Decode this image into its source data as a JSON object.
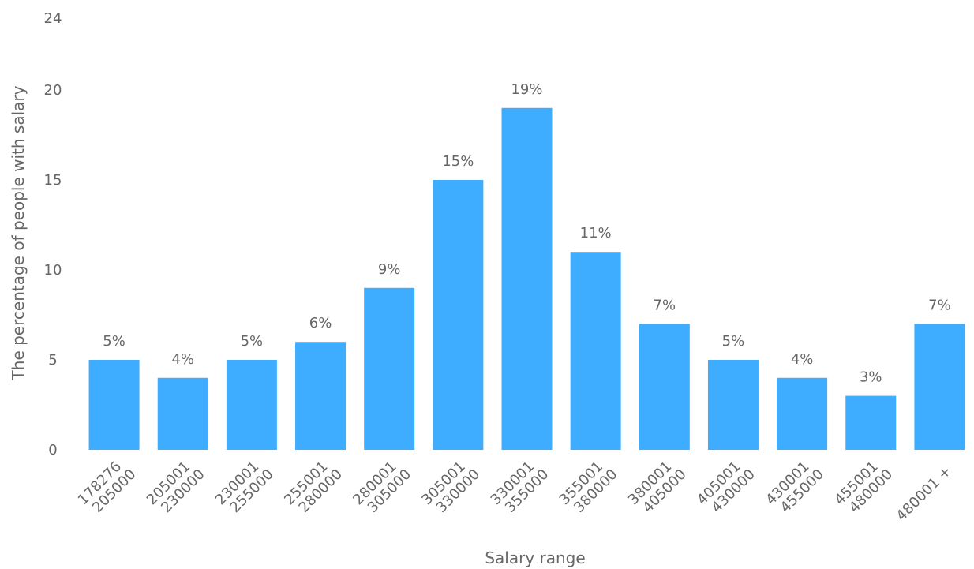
{
  "chart_data": {
    "type": "bar",
    "title": "",
    "xlabel": "Salary range",
    "ylabel": "The percentage of people with salary",
    "ylim": [
      0,
      24
    ],
    "yticks": [
      0,
      5,
      10,
      15,
      20,
      24
    ],
    "grid": false,
    "legend": "none",
    "bar_color": "#3fadff",
    "categories": [
      [
        "178276",
        "205000"
      ],
      [
        "205001",
        "230000"
      ],
      [
        "230001",
        "255000"
      ],
      [
        "255001",
        "280000"
      ],
      [
        "280001",
        "305000"
      ],
      [
        "305001",
        "330000"
      ],
      [
        "330001",
        "355000"
      ],
      [
        "355001",
        "380000"
      ],
      [
        "380001",
        "405000"
      ],
      [
        "405001",
        "430000"
      ],
      [
        "430001",
        "455000"
      ],
      [
        "455001",
        "480000"
      ],
      [
        "480001 +"
      ]
    ],
    "values": [
      5,
      4,
      5,
      6,
      9,
      15,
      19,
      11,
      7,
      5,
      4,
      3,
      7
    ],
    "data_labels": [
      "5%",
      "4%",
      "5%",
      "6%",
      "9%",
      "15%",
      "19%",
      "11%",
      "7%",
      "5%",
      "4%",
      "3%",
      "7%"
    ]
  }
}
